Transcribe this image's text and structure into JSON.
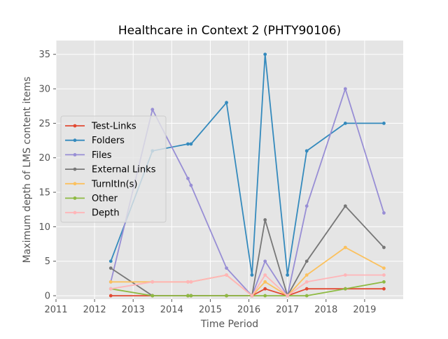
{
  "chart_data": {
    "type": "line",
    "title": "Healthcare in Context 2 (PHTY90106)",
    "xlabel": "Time Period",
    "ylabel": "Maximum depth of LMS content items",
    "xlim": [
      2011,
      2020
    ],
    "ylim": [
      -0.5,
      37
    ],
    "xticks": [
      2011,
      2012,
      2013,
      2014,
      2015,
      2016,
      2017,
      2018,
      2019
    ],
    "yticks": [
      0,
      5,
      10,
      15,
      20,
      25,
      30,
      35
    ],
    "grid": true,
    "legend_position": "center-left",
    "x": [
      2012.42,
      2013.5,
      2014.42,
      2014.5,
      2015.42,
      2016.08,
      2016.42,
      2017.0,
      2017.5,
      2018.5,
      2019.5
    ],
    "series": [
      {
        "name": "Test-Links",
        "color": "#e24a33",
        "values": [
          0,
          0,
          0,
          0,
          0,
          0,
          1,
          0,
          1,
          1,
          1
        ]
      },
      {
        "name": "Folders",
        "color": "#348abd",
        "values": [
          5,
          21,
          22,
          22,
          28,
          3,
          35,
          3,
          21,
          25,
          25
        ]
      },
      {
        "name": "Files",
        "color": "#988ed5",
        "values": [
          2,
          27,
          17,
          16,
          4,
          0,
          5,
          0,
          13,
          30,
          12
        ]
      },
      {
        "name": "External Links",
        "color": "#777777",
        "values": [
          4,
          0,
          0,
          0,
          0,
          0,
          11,
          0,
          5,
          13,
          7
        ]
      },
      {
        "name": "TurnItIn(s)",
        "color": "#fbc15e",
        "values": [
          2,
          2,
          2,
          2,
          3,
          0,
          2,
          0,
          3,
          7,
          4
        ]
      },
      {
        "name": "Other",
        "color": "#8eba42",
        "values": [
          1,
          0,
          0,
          0,
          0,
          0,
          0,
          0,
          0,
          1,
          2
        ]
      },
      {
        "name": "Depth",
        "color": "#ffb5b8",
        "values": [
          1,
          2,
          2,
          2,
          3,
          0,
          3,
          0,
          2,
          3,
          3
        ]
      }
    ]
  }
}
